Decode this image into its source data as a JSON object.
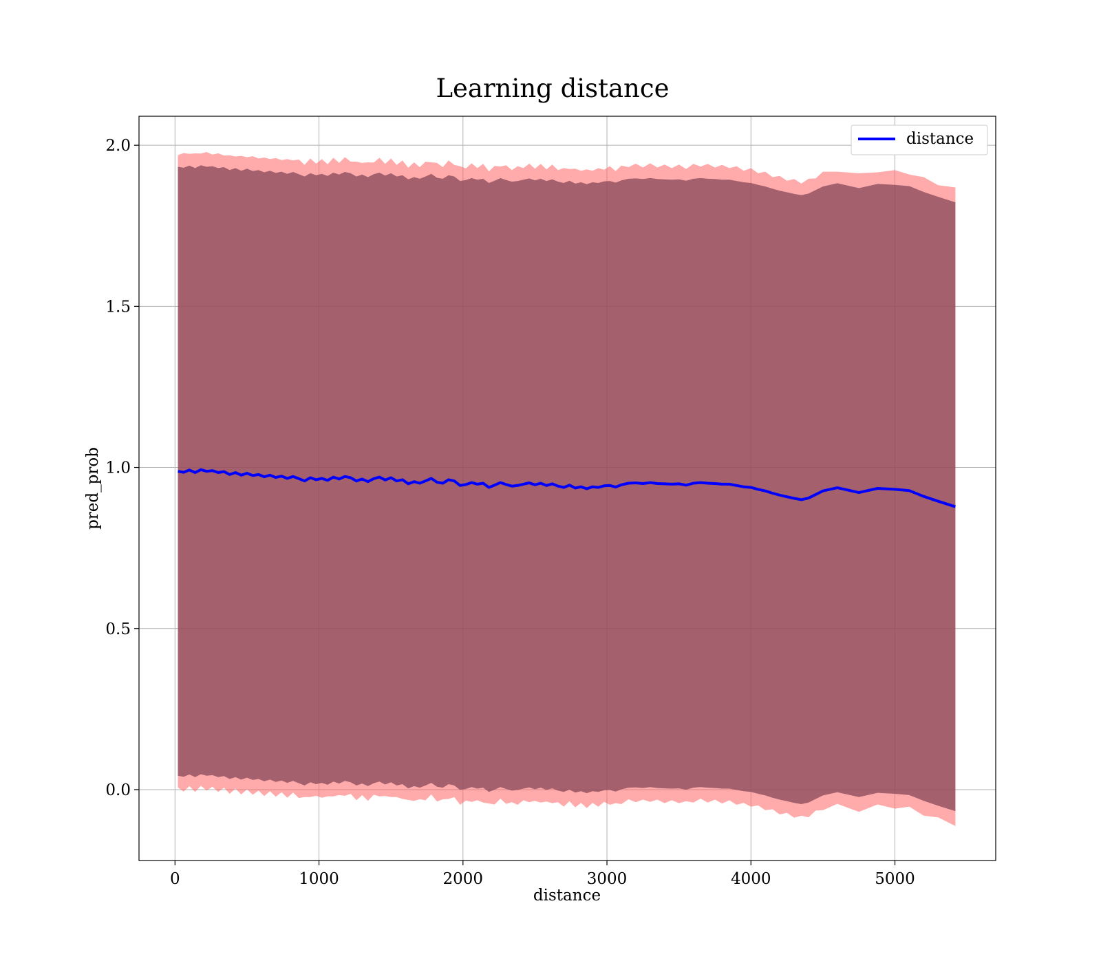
{
  "chart_data": {
    "type": "line",
    "title": "Learning distance",
    "xlabel": "distance",
    "ylabel": "pred_prob",
    "xlim": [
      -250,
      5700
    ],
    "ylim": [
      -0.22,
      2.09
    ],
    "xticks": [
      0,
      1000,
      2000,
      3000,
      4000,
      5000
    ],
    "xtick_labels": [
      "0",
      "1000",
      "2000",
      "3000",
      "4000",
      "5000"
    ],
    "yticks": [
      0.0,
      0.5,
      1.0,
      1.5,
      2.0
    ],
    "ytick_labels": [
      "0.0",
      "0.5",
      "1.0",
      "1.5",
      "2.0"
    ],
    "grid": true,
    "legend": {
      "position": "top-right",
      "entries": [
        "distance"
      ]
    },
    "series": [
      {
        "name": "distance",
        "color": "#0000ff",
        "x": [
          20,
          60,
          100,
          140,
          180,
          220,
          260,
          300,
          340,
          380,
          420,
          460,
          500,
          540,
          580,
          620,
          660,
          700,
          740,
          780,
          820,
          860,
          900,
          940,
          980,
          1020,
          1060,
          1100,
          1140,
          1180,
          1220,
          1260,
          1300,
          1340,
          1380,
          1420,
          1460,
          1500,
          1540,
          1580,
          1620,
          1660,
          1700,
          1740,
          1780,
          1820,
          1860,
          1900,
          1940,
          1980,
          2020,
          2060,
          2100,
          2140,
          2180,
          2220,
          2260,
          2300,
          2340,
          2380,
          2420,
          2460,
          2500,
          2540,
          2580,
          2620,
          2660,
          2700,
          2740,
          2780,
          2820,
          2860,
          2900,
          2940,
          2980,
          3020,
          3060,
          3100,
          3150,
          3200,
          3250,
          3300,
          3350,
          3400,
          3450,
          3500,
          3550,
          3600,
          3650,
          3700,
          3750,
          3800,
          3850,
          3900,
          3950,
          4000,
          4050,
          4100,
          4150,
          4200,
          4250,
          4300,
          4350,
          4400,
          4450,
          4500,
          4600,
          4750,
          4880,
          5000,
          5100,
          5200,
          5300,
          5420
        ],
        "values": [
          0.988,
          0.985,
          0.992,
          0.984,
          0.993,
          0.988,
          0.99,
          0.984,
          0.987,
          0.978,
          0.984,
          0.976,
          0.982,
          0.975,
          0.978,
          0.971,
          0.976,
          0.969,
          0.973,
          0.966,
          0.972,
          0.965,
          0.958,
          0.968,
          0.962,
          0.966,
          0.96,
          0.97,
          0.964,
          0.972,
          0.968,
          0.958,
          0.964,
          0.956,
          0.965,
          0.97,
          0.961,
          0.968,
          0.958,
          0.962,
          0.949,
          0.956,
          0.951,
          0.958,
          0.966,
          0.954,
          0.951,
          0.962,
          0.958,
          0.944,
          0.947,
          0.953,
          0.948,
          0.951,
          0.938,
          0.945,
          0.953,
          0.947,
          0.942,
          0.944,
          0.948,
          0.952,
          0.946,
          0.951,
          0.944,
          0.949,
          0.942,
          0.938,
          0.945,
          0.936,
          0.94,
          0.934,
          0.94,
          0.938,
          0.943,
          0.944,
          0.939,
          0.946,
          0.951,
          0.952,
          0.95,
          0.953,
          0.95,
          0.949,
          0.948,
          0.949,
          0.945,
          0.951,
          0.953,
          0.951,
          0.95,
          0.948,
          0.948,
          0.944,
          0.94,
          0.938,
          0.932,
          0.927,
          0.92,
          0.914,
          0.909,
          0.904,
          0.9,
          0.905,
          0.916,
          0.927,
          0.937,
          0.922,
          0.935,
          0.932,
          0.928,
          0.91,
          0.895,
          0.878
        ],
        "outer_band_halfwidth": 0.985,
        "inner_band_halfwidth": 0.945,
        "outer_band_color": "#ff6666",
        "inner_band_color": "#8b4a5a"
      }
    ]
  }
}
